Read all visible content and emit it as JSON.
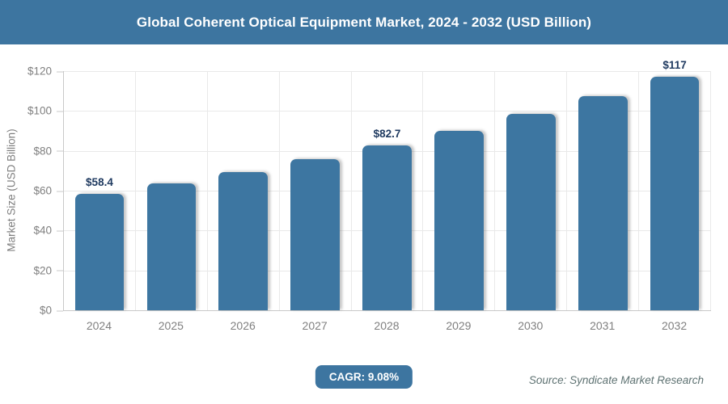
{
  "header": {
    "title": "Global Coherent Optical Equipment Market, 2024 - 2032 (USD Billion)"
  },
  "chart_data": {
    "type": "bar",
    "title": "Global Coherent Optical Equipment Market, 2024 - 2032 (USD Billion)",
    "categories": [
      "2024",
      "2025",
      "2026",
      "2027",
      "2028",
      "2029",
      "2030",
      "2031",
      "2032"
    ],
    "values": [
      58.4,
      63.7,
      69.5,
      75.8,
      82.7,
      90.2,
      98.4,
      107.3,
      117
    ],
    "bar_labels": [
      "$58.4",
      "",
      "",
      "",
      "$82.7",
      "",
      "",
      "",
      "$117"
    ],
    "xlabel": "",
    "ylabel": "Market Size (USD Billion)",
    "ylim": [
      0,
      120
    ],
    "ytick_values": [
      0,
      20,
      40,
      60,
      80,
      100,
      120
    ],
    "ytick_labels": [
      "$0",
      "$20",
      "$40",
      "$60",
      "$80",
      "$100",
      "$120"
    ],
    "grid": true,
    "legend": false,
    "bar_color": "#3d76a1",
    "bar_label_color": "#1f3a60"
  },
  "footer": {
    "cagr_badge": "CAGR: 9.08%",
    "source": "Source: Syndicate Market Research"
  },
  "colors": {
    "header_bg": "#3d75a0",
    "badge_bg": "#3d75a0",
    "gridline": "#e9e9e9",
    "axis_line": "#c9c9c9",
    "tick_text": "#7f7f7f"
  }
}
